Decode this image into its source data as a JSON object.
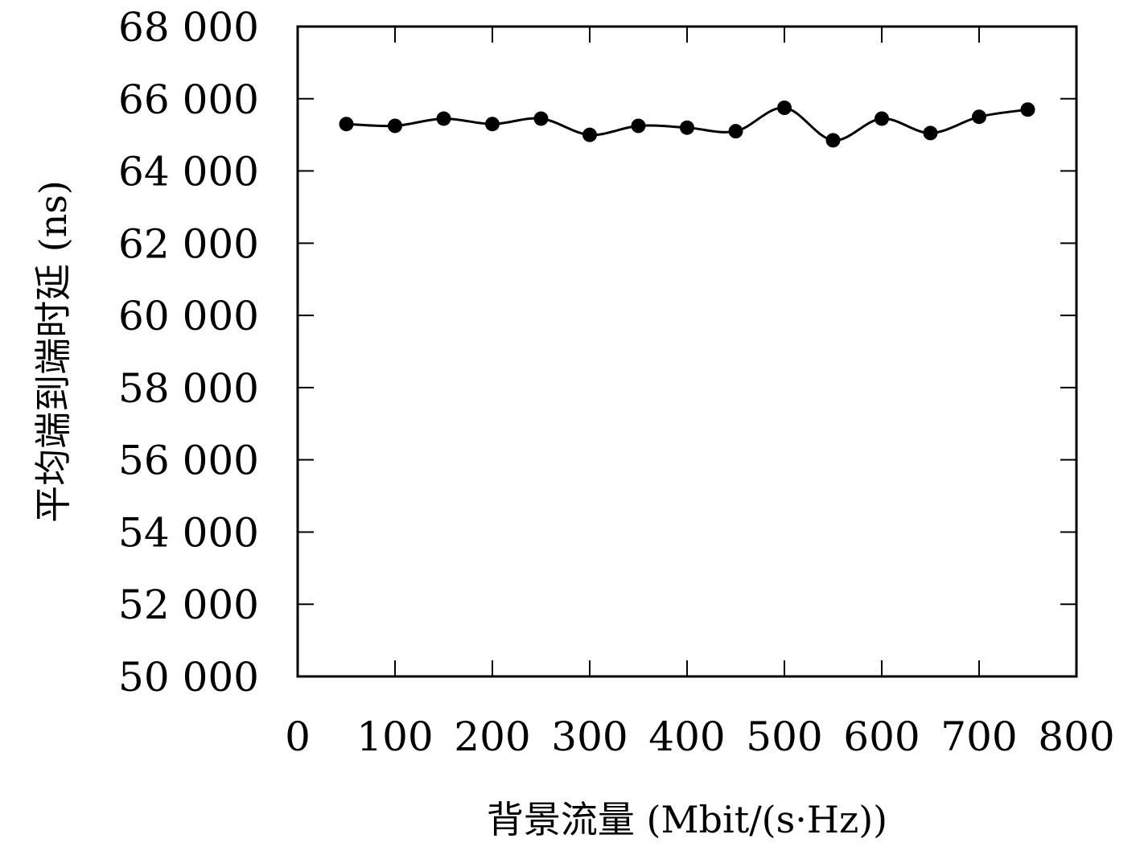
{
  "chart_data": {
    "type": "line",
    "title": "",
    "xlabel": "背景流量 (Mbit/(s·Hz))",
    "ylabel": "平均端到端时延 (ns)",
    "xlim": [
      0,
      800
    ],
    "ylim": [
      50000,
      68000
    ],
    "xticks": [
      0,
      100,
      200,
      300,
      400,
      500,
      600,
      700,
      800
    ],
    "yticks": [
      50000,
      52000,
      54000,
      56000,
      58000,
      60000,
      62000,
      64000,
      66000,
      68000
    ],
    "xtick_labels": [
      "0",
      "100",
      "200",
      "300",
      "400",
      "500",
      "600",
      "700",
      "800"
    ],
    "ytick_labels": [
      "50 000",
      "52 000",
      "54 000",
      "56 000",
      "58 000",
      "60 000",
      "62 000",
      "64 000",
      "66 000",
      "68 000"
    ],
    "grid": false,
    "legend": "none",
    "series": [
      {
        "color": "#000000",
        "marker": "circle",
        "x": [
          50,
          100,
          150,
          200,
          250,
          300,
          350,
          400,
          450,
          500,
          550,
          600,
          650,
          700,
          750
        ],
        "y": [
          65300,
          65250,
          65450,
          65300,
          65450,
          65000,
          65250,
          65200,
          65100,
          65750,
          64850,
          65450,
          65050,
          65500,
          65700
        ]
      }
    ]
  }
}
